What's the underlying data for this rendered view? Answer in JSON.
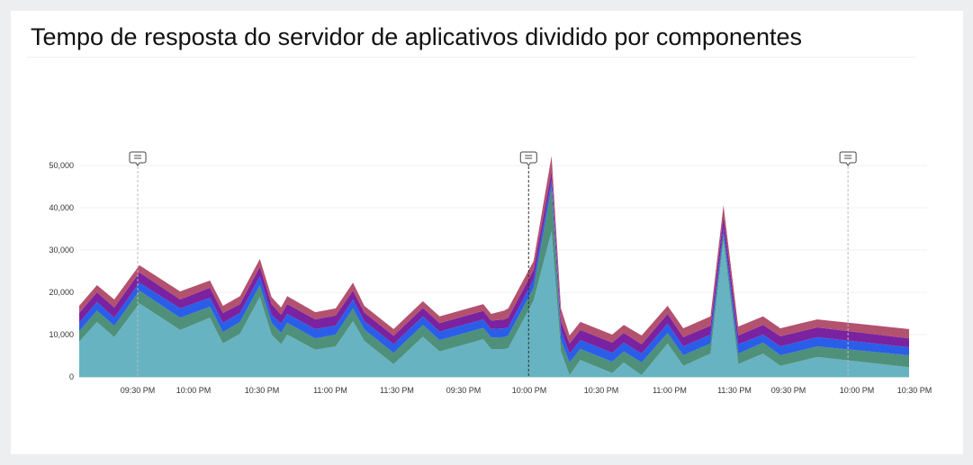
{
  "title": "Tempo de resposta do servidor de aplicativos dividido por componentes",
  "chart_data": {
    "type": "area",
    "stacked": true,
    "title": "Tempo de resposta do servidor de aplicativos dividido por componentes",
    "xlabel": "",
    "ylabel": "",
    "ylim": [
      0,
      50000
    ],
    "yticks": [
      0,
      10000,
      20000,
      30000,
      40000,
      50000
    ],
    "ytick_labels": [
      "0",
      "10,000",
      "20,000",
      "30,000",
      "40,000",
      "50,000"
    ],
    "xtick_labels": [
      "09:30 PM",
      "10:00 PM",
      "10:30 PM",
      "11:00 PM",
      "11:30 PM",
      "09:30 PM",
      "10:00 PM",
      "10:30 PM",
      "11:00 PM",
      "11:30 PM",
      "09:30 PM",
      "10:00 PM",
      "10:30 PM"
    ],
    "x_units": "position on the time axis, measured in tick-label intervals (0 = first tick label)",
    "grid": "horizontal",
    "legend": "none",
    "x": [
      -1.03,
      -0.73,
      -0.42,
      0.03,
      0.76,
      1.24,
      1.43,
      1.68,
      1.97,
      2.14,
      2.28,
      2.37,
      2.78,
      3.08,
      3.34,
      3.51,
      3.95,
      4.39,
      4.64,
      5.3,
      5.42,
      5.62,
      5.68,
      6.06,
      6.31,
      6.44,
      6.56,
      6.71,
      7.16,
      7.33,
      7.59,
      7.97,
      8.21,
      8.63,
      8.83,
      9.07,
      9.53,
      9.85,
      10.42,
      11.89
    ],
    "series": [
      {
        "color": "#67b3c2",
        "values": [
          8300,
          13000,
          9400,
          17400,
          11100,
          14000,
          7900,
          10200,
          18900,
          10000,
          7700,
          10000,
          6400,
          7200,
          13200,
          8500,
          3000,
          9500,
          6000,
          8900,
          6600,
          6600,
          6800,
          18000,
          34500,
          6000,
          400,
          4000,
          900,
          3400,
          400,
          7900,
          2600,
          5500,
          32300,
          3000,
          5500,
          2600,
          4700,
          2300
        ]
      },
      {
        "color": "#4e907a",
        "values": [
          2500,
          2700,
          2700,
          3000,
          2900,
          2600,
          2700,
          2800,
          2800,
          2800,
          2700,
          2800,
          2700,
          2800,
          3000,
          2700,
          2700,
          2800,
          2700,
          2700,
          2700,
          2800,
          3000,
          3000,
          10400,
          2700,
          3000,
          2600,
          2700,
          2600,
          3000,
          2500,
          2500,
          2400,
          1500,
          2500,
          2600,
          2500,
          2500,
          2800
        ]
      },
      {
        "color": "#2a5ee8",
        "values": [
          2000,
          2000,
          1900,
          1900,
          2200,
          2100,
          2200,
          2100,
          2100,
          1900,
          2200,
          2100,
          2200,
          2100,
          2100,
          2000,
          2000,
          2000,
          2000,
          2000,
          2000,
          2100,
          1900,
          2000,
          1700,
          2400,
          2100,
          2100,
          2100,
          2100,
          2100,
          2200,
          2100,
          2100,
          1500,
          2200,
          1900,
          2100,
          2200,
          1900
        ]
      },
      {
        "color": "#7b22a0",
        "values": [
          2300,
          2300,
          2400,
          2400,
          2100,
          2400,
          2300,
          2100,
          2200,
          2500,
          2100,
          2300,
          2300,
          2400,
          2100,
          2000,
          2000,
          2000,
          2000,
          2000,
          2000,
          2100,
          2300,
          2300,
          2100,
          2100,
          2400,
          2400,
          2400,
          2300,
          2200,
          2300,
          2200,
          2100,
          2800,
          2100,
          2300,
          2400,
          2300,
          2100
        ]
      },
      {
        "color": "#b3526f",
        "values": [
          1700,
          1700,
          1900,
          1700,
          1900,
          1700,
          1700,
          1900,
          1900,
          1700,
          1700,
          1900,
          1700,
          1700,
          1900,
          1600,
          1600,
          1600,
          1600,
          1600,
          1600,
          2100,
          2200,
          2100,
          3600,
          3000,
          1900,
          1900,
          1900,
          1900,
          2100,
          1900,
          2100,
          2200,
          2500,
          2100,
          2000,
          1900,
          1900,
          2200
        ]
      }
    ],
    "annotations": [
      {
        "x": 0.0,
        "icon": "comment-icon",
        "line_color": "#bbbbbb"
      },
      {
        "x": 5.99,
        "icon": "comment-icon",
        "line_color": "#333333"
      },
      {
        "x": 10.87,
        "icon": "comment-icon",
        "line_color": "#bbbbbb"
      }
    ]
  }
}
